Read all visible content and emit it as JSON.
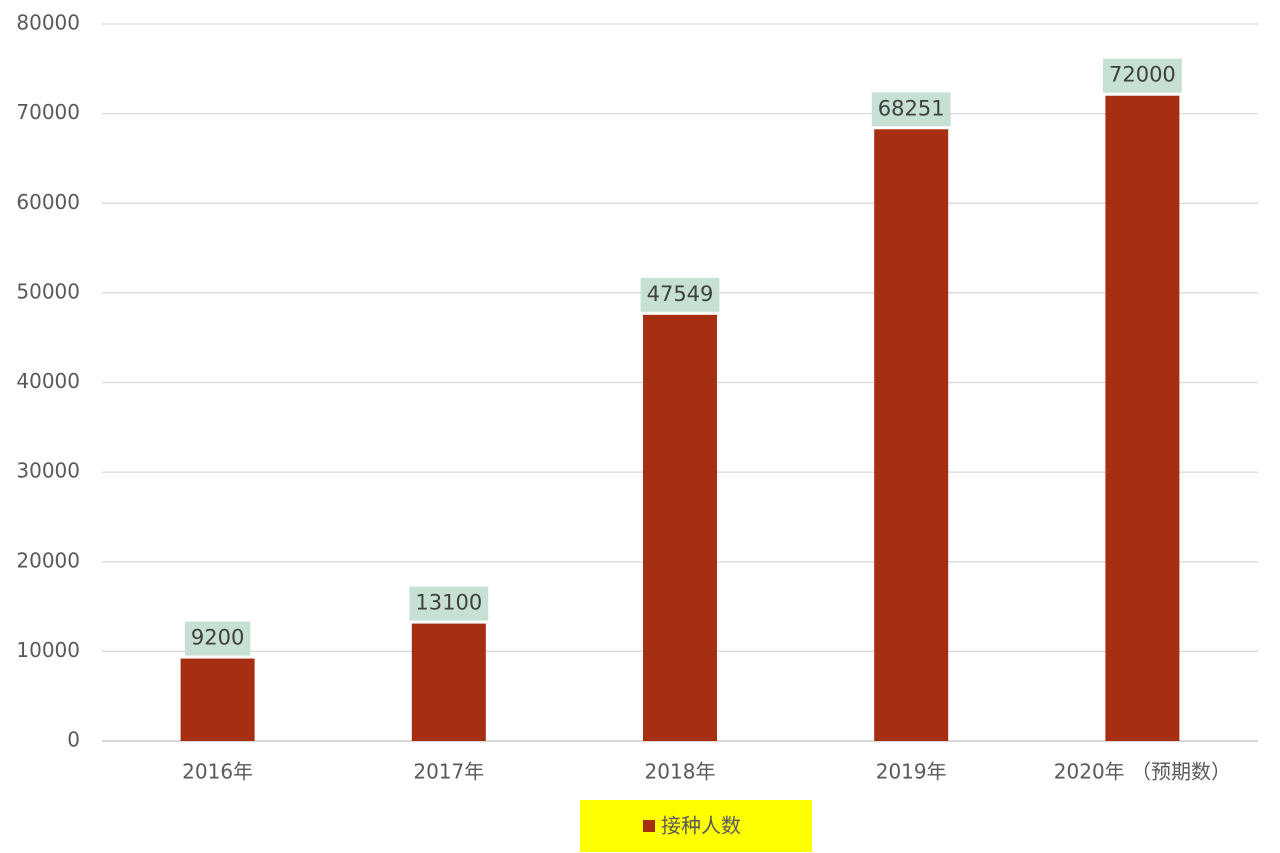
{
  "chart_data": {
    "type": "bar",
    "categories": [
      "2016年",
      "2017年",
      "2018年",
      "2019年",
      "2020年 （预期数）"
    ],
    "series": [
      {
        "name": "接种人数",
        "color": "#a52f10",
        "values": [
          9200,
          13100,
          47549,
          68251,
          72000
        ]
      }
    ],
    "ylim": [
      0,
      80000
    ],
    "yticks": [
      0,
      10000,
      20000,
      30000,
      40000,
      50000,
      60000,
      70000,
      80000
    ],
    "grid": true,
    "legend": "bottom",
    "legend_background": "#ffff00",
    "label_background": "#c6e0d4"
  }
}
